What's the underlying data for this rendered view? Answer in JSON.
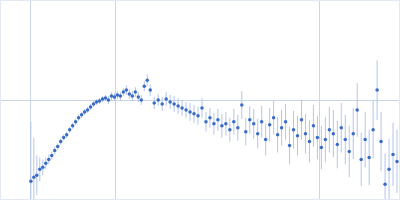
{
  "chart_data": {
    "type": "scatter",
    "x": [
      30,
      33,
      36,
      39,
      42,
      45,
      48,
      51,
      54,
      57,
      60,
      63,
      66,
      69,
      72,
      75,
      78,
      81,
      84,
      87,
      90,
      93,
      96,
      99,
      102,
      105,
      108,
      111,
      114,
      117,
      120,
      123,
      126,
      129,
      132,
      135,
      138,
      141,
      144,
      147,
      150,
      154,
      158,
      162,
      166,
      170,
      174,
      178,
      182,
      186,
      190,
      194,
      198,
      202,
      206,
      210,
      214,
      218,
      222,
      226,
      230,
      234,
      238,
      242,
      246,
      250,
      254,
      258,
      262,
      266,
      270,
      274,
      278,
      282,
      286,
      290,
      294,
      298,
      302,
      306,
      310,
      314,
      318,
      322,
      326,
      330,
      334,
      338,
      342,
      346,
      350,
      354,
      358,
      362,
      366,
      370,
      374,
      378,
      382,
      386,
      390,
      394,
      398
    ],
    "values": [
      18,
      22,
      24,
      30,
      32,
      36,
      40,
      44,
      49,
      53,
      58,
      62,
      65,
      70,
      74,
      78,
      82,
      85,
      88,
      90,
      93,
      96,
      98,
      99,
      101,
      102,
      100,
      104,
      103,
      105,
      104,
      108,
      110,
      106,
      104,
      108,
      103,
      100,
      114,
      120,
      110,
      97,
      100,
      96,
      101,
      98,
      96,
      94,
      92,
      90,
      88,
      86,
      84,
      92,
      78,
      82,
      76,
      80,
      74,
      76,
      70,
      78,
      72,
      95,
      68,
      80,
      76,
      66,
      78,
      60,
      75,
      82,
      65,
      72,
      78,
      54,
      70,
      64,
      80,
      66,
      58,
      74,
      62,
      52,
      60,
      70,
      66,
      55,
      72,
      60,
      48,
      66,
      90,
      40,
      60,
      42,
      70,
      110,
      58,
      15,
      30,
      45,
      38
    ],
    "errors": [
      60,
      40,
      20,
      12,
      8,
      6,
      5,
      4,
      4,
      3,
      3,
      3,
      3,
      3,
      3,
      3,
      3,
      3,
      3,
      3,
      3,
      3,
      3,
      3,
      3,
      3,
      4,
      4,
      4,
      4,
      4,
      4,
      5,
      5,
      5,
      5,
      5,
      5,
      5,
      6,
      6,
      6,
      6,
      7,
      7,
      7,
      8,
      8,
      8,
      8,
      9,
      9,
      9,
      10,
      10,
      10,
      11,
      11,
      12,
      12,
      12,
      13,
      13,
      14,
      14,
      14,
      15,
      15,
      16,
      16,
      17,
      17,
      18,
      18,
      18,
      19,
      19,
      20,
      20,
      20,
      21,
      21,
      22,
      22,
      23,
      23,
      24,
      24,
      25,
      25,
      26,
      26,
      27,
      27,
      28,
      28,
      29,
      30,
      30,
      31,
      31,
      32,
      32
    ],
    "color": "#3a6cc6",
    "xlim": [
      0,
      400
    ],
    "ylim": [
      0,
      200
    ],
    "xticks": [
      30,
      115,
      320
    ],
    "yticks": [
      100
    ],
    "grid": true,
    "tick_labels": false
  }
}
